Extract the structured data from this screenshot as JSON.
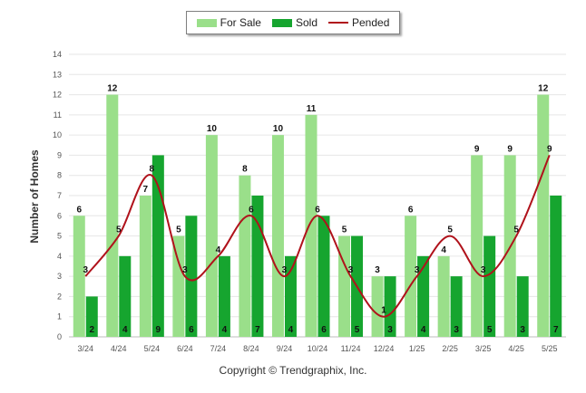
{
  "legend": {
    "for_sale": "For Sale",
    "sold": "Sold",
    "pended": "Pended"
  },
  "colors": {
    "for_sale": "#9ADF8A",
    "sold": "#16A52F",
    "pended": "#B0121B",
    "grid": "#E6E6E6",
    "axis_text": "#555555",
    "label_text": "#111111"
  },
  "chart_data": {
    "type": "bar",
    "title": "",
    "xlabel": "",
    "ylabel": "Number of Homes",
    "ylim": [
      0,
      14
    ],
    "yticks": [
      0,
      1,
      2,
      3,
      4,
      5,
      6,
      7,
      8,
      9,
      10,
      11,
      12,
      13,
      14
    ],
    "categories": [
      "3/24",
      "4/24",
      "5/24",
      "6/24",
      "7/24",
      "8/24",
      "9/24",
      "10/24",
      "11/24",
      "12/24",
      "1/25",
      "2/25",
      "3/25",
      "4/25",
      "5/25"
    ],
    "series": [
      {
        "name": "For Sale",
        "type": "bar",
        "values": [
          6,
          12,
          7,
          5,
          10,
          8,
          10,
          11,
          5,
          3,
          6,
          4,
          9,
          9,
          12
        ]
      },
      {
        "name": "Sold",
        "type": "bar",
        "values": [
          2,
          4,
          9,
          6,
          4,
          7,
          4,
          6,
          5,
          3,
          4,
          3,
          5,
          3,
          7
        ]
      },
      {
        "name": "Pended",
        "type": "line",
        "smooth": true,
        "values": [
          3,
          5,
          8,
          3,
          4,
          6,
          3,
          6,
          3,
          1,
          3,
          5,
          3,
          5,
          9
        ]
      }
    ],
    "grid": true,
    "legend_position": "top-center"
  },
  "footer": "Copyright © Trendgraphix, Inc."
}
